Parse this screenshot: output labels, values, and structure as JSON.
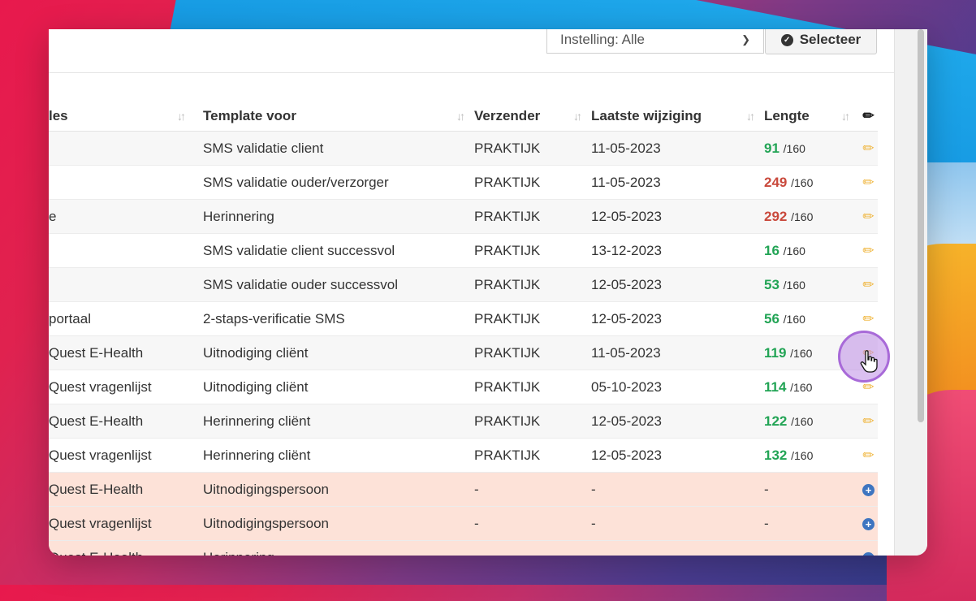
{
  "toolbar": {
    "filter_value": "Instelling: Alle",
    "select_label": "Selecteer"
  },
  "columns": {
    "name": "les",
    "template": "Template voor",
    "sender": "Verzender",
    "modified": "Laatste wijziging",
    "length": "Lengte"
  },
  "rows": [
    {
      "name": "",
      "template": "SMS validatie client",
      "sender": "PRAKTIJK",
      "modified": "11-05-2023",
      "length": "91",
      "max": "/160",
      "ok": true,
      "action": "edit"
    },
    {
      "name": "",
      "template": "SMS validatie ouder/verzorger",
      "sender": "PRAKTIJK",
      "modified": "11-05-2023",
      "length": "249",
      "max": "/160",
      "ok": false,
      "action": "edit"
    },
    {
      "name": "e",
      "template": "Herinnering",
      "sender": "PRAKTIJK",
      "modified": "12-05-2023",
      "length": "292",
      "max": "/160",
      "ok": false,
      "action": "edit"
    },
    {
      "name": "",
      "template": "SMS validatie client successvol",
      "sender": "PRAKTIJK",
      "modified": "13-12-2023",
      "length": "16",
      "max": "/160",
      "ok": true,
      "action": "edit"
    },
    {
      "name": "",
      "template": "SMS validatie ouder successvol",
      "sender": "PRAKTIJK",
      "modified": "12-05-2023",
      "length": "53",
      "max": "/160",
      "ok": true,
      "action": "edit"
    },
    {
      "name": "portaal",
      "template": "2-staps-verificatie SMS",
      "sender": "PRAKTIJK",
      "modified": "12-05-2023",
      "length": "56",
      "max": "/160",
      "ok": true,
      "action": "edit"
    },
    {
      "name": "Quest E-Health",
      "template": "Uitnodiging cliënt",
      "sender": "PRAKTIJK",
      "modified": "11-05-2023",
      "length": "119",
      "max": "/160",
      "ok": true,
      "action": "edit"
    },
    {
      "name": "Quest vragenlijst",
      "template": "Uitnodiging cliënt",
      "sender": "PRAKTIJK",
      "modified": "05-10-2023",
      "length": "114",
      "max": "/160",
      "ok": true,
      "action": "edit"
    },
    {
      "name": "Quest E-Health",
      "template": "Herinnering cliënt",
      "sender": "PRAKTIJK",
      "modified": "12-05-2023",
      "length": "122",
      "max": "/160",
      "ok": true,
      "action": "edit"
    },
    {
      "name": "Quest vragenlijst",
      "template": "Herinnering cliënt",
      "sender": "PRAKTIJK",
      "modified": "12-05-2023",
      "length": "132",
      "max": "/160",
      "ok": true,
      "action": "edit"
    },
    {
      "name": "Quest E-Health",
      "template": "Uitnodigingspersoon",
      "sender": "-",
      "modified": "-",
      "length": "-",
      "max": "",
      "ok": null,
      "action": "add"
    },
    {
      "name": "Quest vragenlijst",
      "template": "Uitnodigingspersoon",
      "sender": "-",
      "modified": "-",
      "length": "-",
      "max": "",
      "ok": null,
      "action": "add"
    },
    {
      "name": "Quest E-Health",
      "template": "Herinnering",
      "sender": "-",
      "modified": "-",
      "length": "-",
      "max": "",
      "ok": null,
      "action": "add"
    }
  ],
  "colors": {
    "length_ok": "#22a455",
    "length_over": "#c9493c",
    "edit_icon": "#efb233",
    "add_icon": "#3e75c0",
    "missing_row": "#fde2d8"
  },
  "icons": {
    "sort": "sort-icon",
    "edit": "pencil-icon",
    "add": "plus-circle-icon",
    "confirm": "check-circle-icon"
  }
}
